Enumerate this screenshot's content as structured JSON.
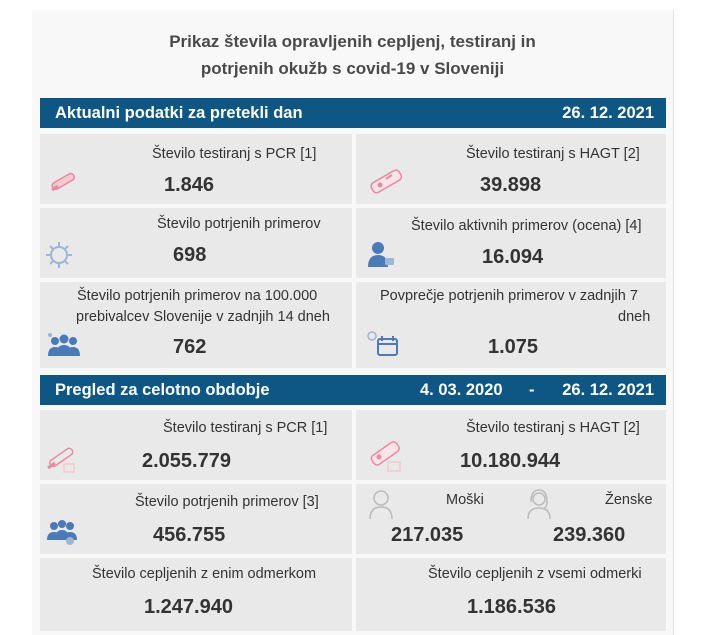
{
  "title_line1": "Prikaz števila opravljenih cepljenj, testiranj in",
  "title_line2": "potrjenih okužb s covid-19 v Sloveniji",
  "daily": {
    "header": "Aktualni podatki za pretekli dan",
    "date": "26. 12. 2021",
    "pcr_label": "Število testiranj s PCR [1]",
    "pcr_value": "1.846",
    "hagt_label": "Število testiranj s HAGT [2]",
    "hagt_value": "39.898",
    "confirmed_label": "Število potrjenih primerov",
    "confirmed_value": "698",
    "active_label": "Število aktivnih primerov (ocena) [4]",
    "active_value": "16.094",
    "per100k_label1": "Število potrjenih primerov na 100.000",
    "per100k_label2": "prebivalcev Slovenije v zadnjih 14 dneh",
    "per100k_value": "762",
    "avg7_label1": "Povprečje potrjenih primerov v zadnjih 7",
    "avg7_label2": "dneh",
    "avg7_value": "1.075"
  },
  "overall": {
    "header": "Pregled za celotno obdobje",
    "date_from": "4. 03. 2020",
    "date_sep": "-",
    "date_to": "26. 12. 2021",
    "pcr_label": "Število testiranj s PCR [1]",
    "pcr_value": "2.055.779",
    "hagt_label": "Število testiranj s HAGT [2]",
    "hagt_value": "10.180.944",
    "confirmed_label": "Število potrjenih primerov [3]",
    "confirmed_value": "456.755",
    "male_label": "Moški",
    "male_value": "217.035",
    "female_label": "Ženske",
    "female_value": "239.360",
    "one_dose_label": "Število cepljenih z enim odmerkom",
    "one_dose_value": "1.247.940",
    "all_doses_label": "Število cepljenih z vsemi odmerki",
    "all_doses_value": "1.186.536"
  },
  "icons": {
    "test_tube": "test-tube-icon",
    "rapid_test": "rapid-test-icon",
    "virus": "virus-icon",
    "patient": "patient-icon",
    "group": "people-group-icon",
    "calendar": "calendar-virus-icon",
    "male": "male-person-icon",
    "female": "female-person-icon"
  },
  "colors": {
    "band": "#0e5683",
    "card": "#e9e9e9",
    "icon_pink": "#e88aa0",
    "icon_blue": "#4a7ab8"
  }
}
